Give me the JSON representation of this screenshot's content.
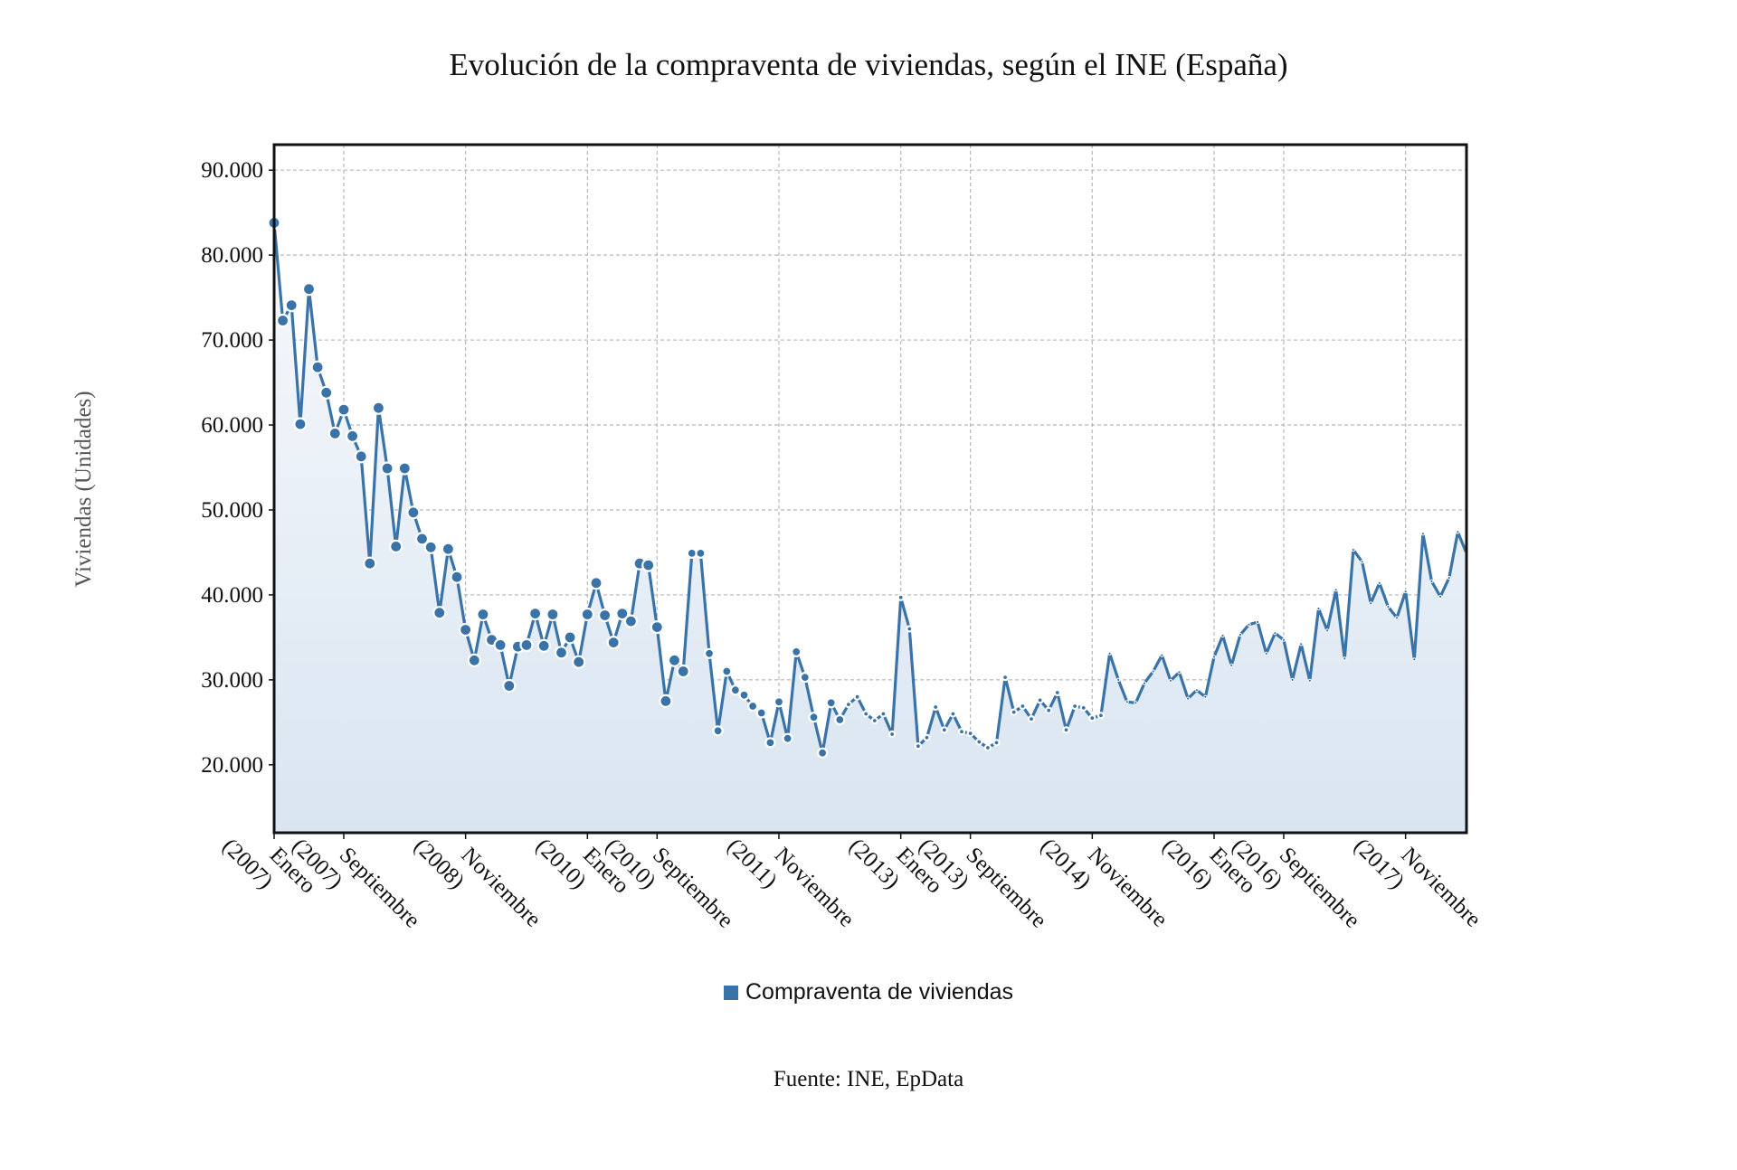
{
  "chart_data": {
    "type": "line",
    "title": "Evolución de la compraventa de viviendas, según el INE (España)",
    "ylabel": "Viviendas (Unidades)",
    "xlabel": "",
    "ylim": [
      12000,
      93000
    ],
    "yticks": [
      20000,
      30000,
      40000,
      50000,
      60000,
      70000,
      80000,
      90000
    ],
    "ytick_labels": [
      "20.000",
      "30.000",
      "40.000",
      "50.000",
      "60.000",
      "70.000",
      "80.000",
      "90.000"
    ],
    "xtick_labels": [
      {
        "index": 0,
        "line1": "Enero",
        "line2": "(2007)"
      },
      {
        "index": 8,
        "line1": "Septiembre",
        "line2": "(2007)"
      },
      {
        "index": 22,
        "line1": "Noviembre",
        "line2": "(2008)"
      },
      {
        "index": 36,
        "line1": "Enero",
        "line2": "(2010)"
      },
      {
        "index": 44,
        "line1": "Septiembre",
        "line2": "(2010)"
      },
      {
        "index": 58,
        "line1": "Noviembre",
        "line2": "(2011)"
      },
      {
        "index": 72,
        "line1": "Enero",
        "line2": "(2013)"
      },
      {
        "index": 80,
        "line1": "Septiembre",
        "line2": "(2013)"
      },
      {
        "index": 94,
        "line1": "Noviembre",
        "line2": "(2014)"
      },
      {
        "index": 108,
        "line1": "Enero",
        "line2": "(2016)"
      },
      {
        "index": 116,
        "line1": "Septiembre",
        "line2": "(2016)"
      },
      {
        "index": 130,
        "line1": "Noviembre",
        "line2": "(2017)"
      }
    ],
    "grid": true,
    "legend_position": "bottom-center",
    "series": [
      {
        "name": "Compraventa de viviendas",
        "color": "#3a73a8",
        "start": "Enero 2007",
        "frequency": "monthly",
        "values": [
          83800,
          72300,
          74100,
          60100,
          76000,
          66800,
          63800,
          59000,
          61800,
          58700,
          56300,
          43700,
          62000,
          54900,
          45700,
          54900,
          49700,
          46600,
          45600,
          37900,
          45400,
          42100,
          35900,
          32300,
          37700,
          34700,
          34100,
          29300,
          33900,
          34100,
          37800,
          34000,
          37700,
          33200,
          35000,
          32100,
          37700,
          41400,
          37600,
          34400,
          37800,
          36900,
          43700,
          43500,
          36200,
          27500,
          32300,
          31000,
          44900,
          44900,
          33100,
          24000,
          31000,
          28800,
          28200,
          26900,
          26100,
          22600,
          27400,
          23100,
          33300,
          30300,
          25600,
          21400,
          27300,
          25300,
          27100,
          28000,
          26000,
          25200,
          26000,
          23600,
          39700,
          36000,
          22200,
          23200,
          26800,
          24100,
          26000,
          23900,
          23700,
          22700,
          22000,
          22600,
          30300,
          26200,
          26900,
          25400,
          27600,
          26400,
          28500,
          24100,
          26900,
          26700,
          25500,
          25800,
          33100,
          30000,
          27400,
          27300,
          29600,
          31000,
          32900,
          29900,
          30900,
          27800,
          28800,
          28000,
          32700,
          35200,
          31700,
          35300,
          36500,
          36800,
          33100,
          35500,
          34700,
          30000,
          34200,
          29900,
          38400,
          35800,
          40600,
          32500,
          45300,
          43900,
          39000,
          41400,
          38600,
          37300,
          40400,
          32400,
          47200,
          41600,
          39800,
          42000,
          47400,
          44900
        ]
      }
    ]
  },
  "legend": {
    "label": "Compraventa de viviendas",
    "color": "#3a73a8"
  },
  "source_text": "Fuente: INE, EpData"
}
